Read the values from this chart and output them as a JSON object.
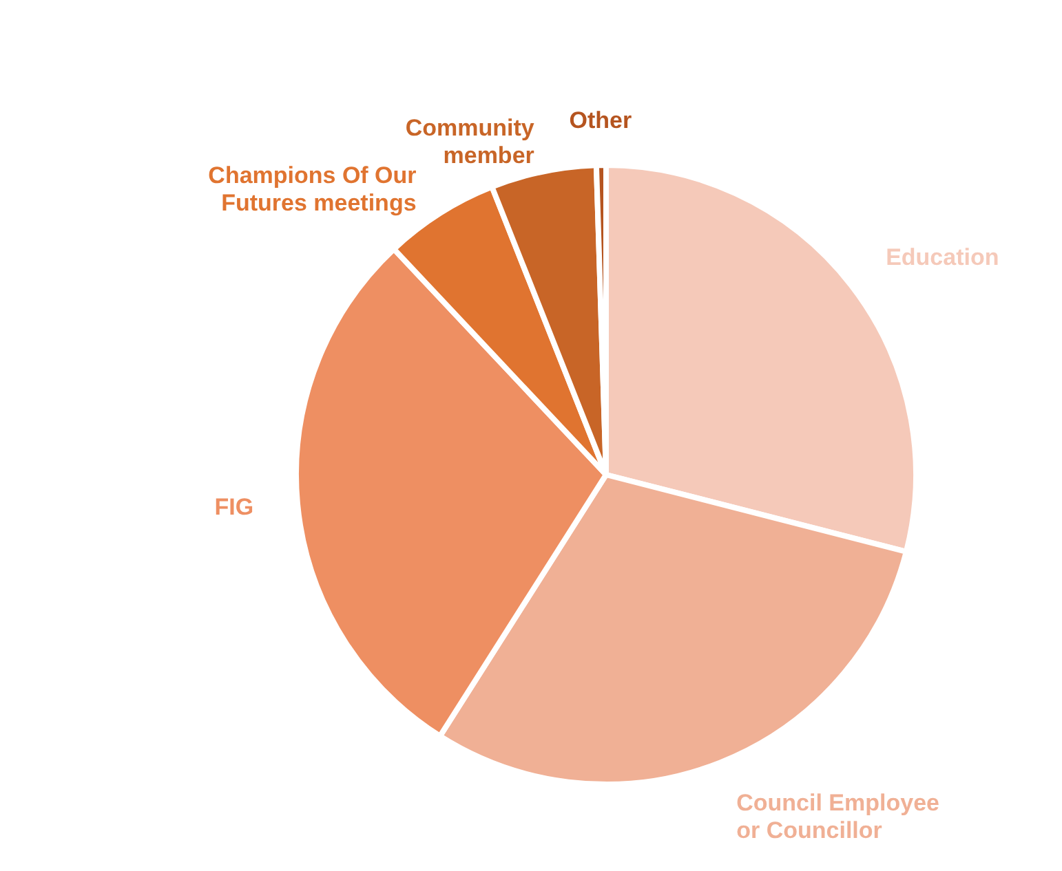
{
  "chart_data": {
    "type": "pie",
    "categories": [
      "Education",
      "Council Employee\nor Councillor",
      "FIG",
      "Champions Of Our\nFutures meetings",
      "Community\nmember",
      "Other"
    ],
    "values": [
      29,
      30,
      29,
      6,
      5.5,
      0.5
    ],
    "colors": [
      "#f5c9b9",
      "#f0b095",
      "#ee8f62",
      "#e07430",
      "#c86527",
      "#b5541f"
    ],
    "legend": false
  }
}
